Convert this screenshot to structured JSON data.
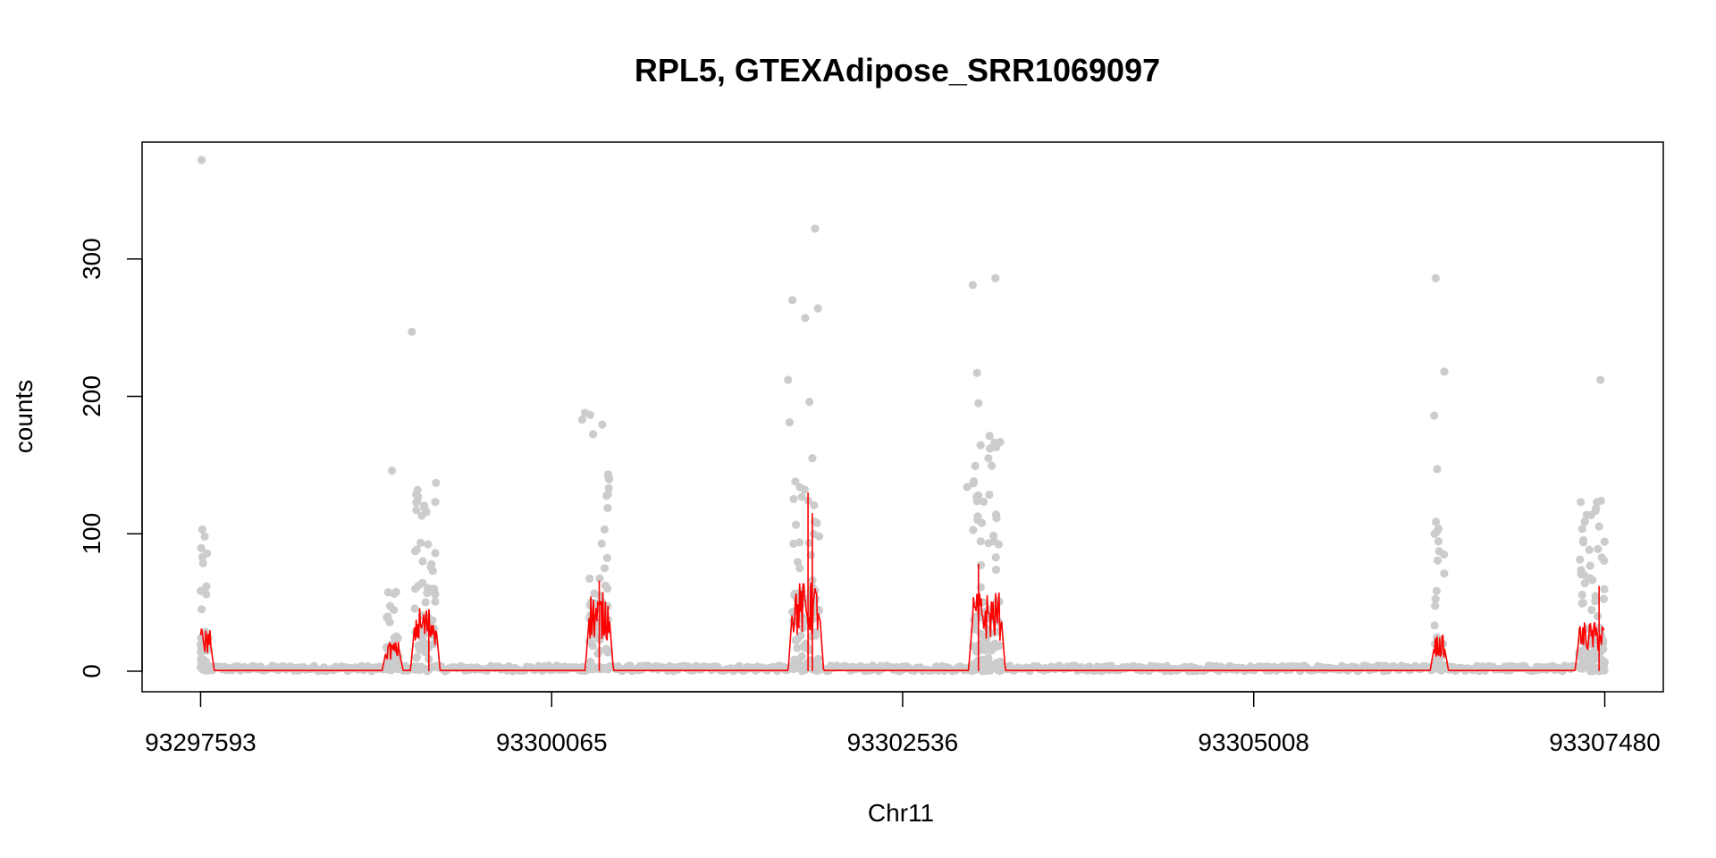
{
  "chart_data": {
    "type": "scatter",
    "title": "RPL5, GTEXAdipose_SRR1069097",
    "xlabel": "Chr11",
    "ylabel": "counts",
    "xlim": [
      93297181,
      93307892
    ],
    "ylim": [
      -15,
      385
    ],
    "x_ticks": [
      93297593,
      93300065,
      93302536,
      93305008,
      93307480
    ],
    "x_tick_labels": [
      "93297593",
      "93300065",
      "93302536",
      "93305008",
      "93307480"
    ],
    "y_ticks": [
      0,
      100,
      200,
      300
    ],
    "y_tick_labels": [
      "0",
      "100",
      "200",
      "300"
    ],
    "grid": false,
    "colors": {
      "points": "#cccccc",
      "fit": "#ff0000",
      "axes": "#000000"
    },
    "exons": [
      {
        "start": 93297593,
        "end": 93297660,
        "fit_level": 22,
        "point_max": 115
      },
      {
        "start": 93298900,
        "end": 93298990,
        "fit_level": 15,
        "point_max": 60
      },
      {
        "start": 93299100,
        "end": 93299250,
        "fit_level": 33,
        "point_max": 137
      },
      {
        "start": 93300330,
        "end": 93300470,
        "fit_level": 40,
        "point_max": 190
      },
      {
        "start": 93301760,
        "end": 93301950,
        "fit_level": 45,
        "point_max": 140
      },
      {
        "start": 93303030,
        "end": 93303230,
        "fit_level": 40,
        "point_max": 175
      },
      {
        "start": 93306280,
        "end": 93306350,
        "fit_level": 18,
        "point_max": 110
      },
      {
        "start": 93307300,
        "end": 93307480,
        "fit_level": 25,
        "point_max": 125
      }
    ],
    "outliers": [
      {
        "x": 93297600,
        "y": 372
      },
      {
        "x": 93299080,
        "y": 247
      },
      {
        "x": 93298940,
        "y": 146
      },
      {
        "x": 93299250,
        "y": 137
      },
      {
        "x": 93300300,
        "y": 188
      },
      {
        "x": 93300280,
        "y": 183
      },
      {
        "x": 93301730,
        "y": 212
      },
      {
        "x": 93301760,
        "y": 270
      },
      {
        "x": 93301740,
        "y": 181
      },
      {
        "x": 93301850,
        "y": 257
      },
      {
        "x": 93301880,
        "y": 196
      },
      {
        "x": 93301920,
        "y": 322
      },
      {
        "x": 93301940,
        "y": 264
      },
      {
        "x": 93301900,
        "y": 155
      },
      {
        "x": 93302990,
        "y": 134
      },
      {
        "x": 93303030,
        "y": 281
      },
      {
        "x": 93303060,
        "y": 217
      },
      {
        "x": 93303070,
        "y": 195
      },
      {
        "x": 93303190,
        "y": 286
      },
      {
        "x": 93306290,
        "y": 286
      },
      {
        "x": 93306280,
        "y": 186
      },
      {
        "x": 93306300,
        "y": 147
      },
      {
        "x": 93306350,
        "y": 218
      },
      {
        "x": 93307450,
        "y": 212
      }
    ],
    "series": [
      {
        "type": "scatter",
        "values": "per-base read counts (points)"
      },
      {
        "type": "line",
        "values": "fitted coverage curve"
      }
    ]
  }
}
